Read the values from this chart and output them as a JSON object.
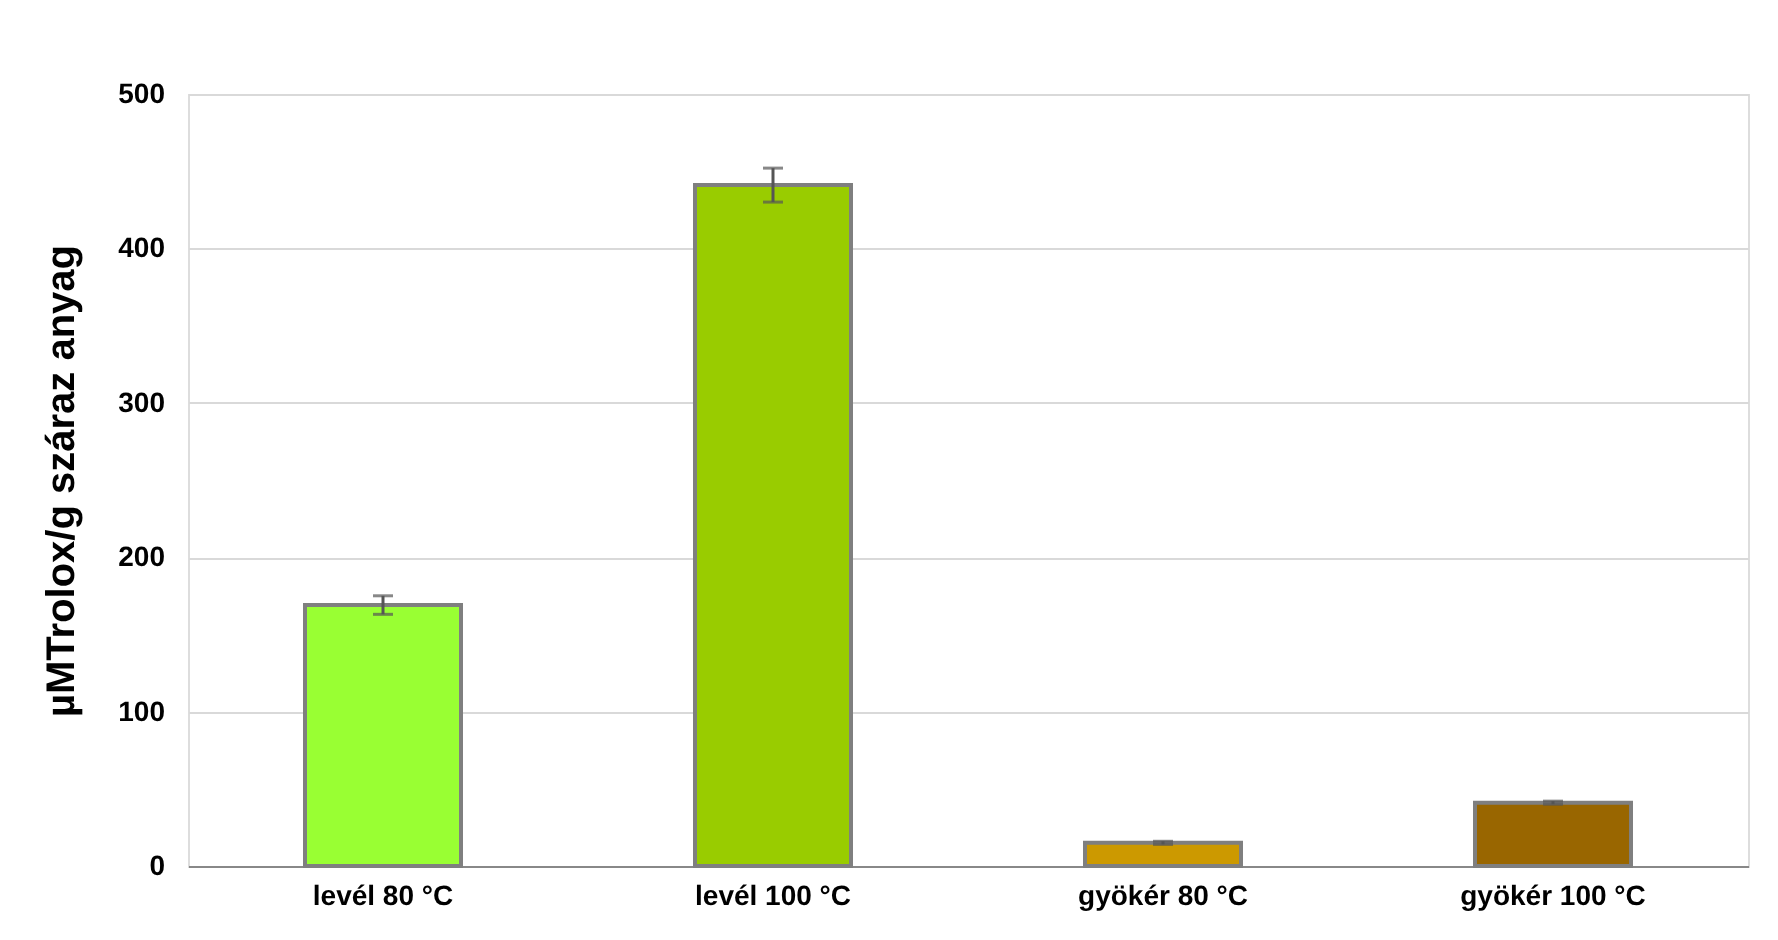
{
  "chart_data": {
    "type": "bar",
    "ylabel": "µMTrolox/g száraz anyag",
    "categories": [
      "levél 80 °C",
      "levél 100 °C",
      "gyökér 80 °C",
      "gyökér 100 °C"
    ],
    "values": [
      169,
      441,
      15,
      41
    ],
    "colors": [
      "#99ff33",
      "#99cc00",
      "#cc9900",
      "#996600"
    ],
    "errors": [
      6,
      11,
      1,
      1
    ],
    "ylim": [
      0,
      500
    ],
    "yticks": [
      0,
      100,
      200,
      300,
      400,
      500
    ],
    "grid": "y"
  }
}
